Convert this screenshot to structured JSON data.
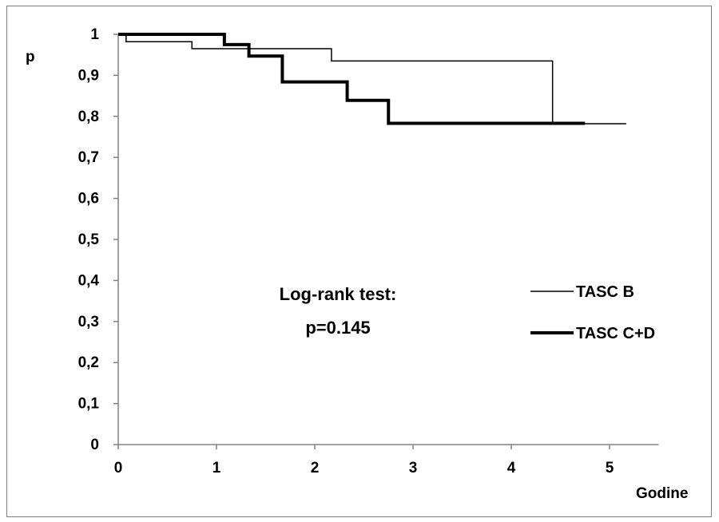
{
  "chart_data": {
    "type": "line",
    "step": true,
    "ylabel": "p",
    "xlabel": "Godine",
    "xlim": [
      0,
      5.5
    ],
    "ylim": [
      0,
      1
    ],
    "x_ticks": [
      "0",
      "1",
      "2",
      "3",
      "4",
      "5"
    ],
    "y_ticks": [
      "0",
      "0,1",
      "0,2",
      "0,3",
      "0,4",
      "0,5",
      "0,6",
      "0,7",
      "0,8",
      "0,9",
      "1"
    ],
    "grid": false,
    "legend_position": "right",
    "annotation": [
      "Log-rank test:",
      "p=0.145"
    ],
    "series": [
      {
        "name": "TASC B",
        "color": "#000000",
        "points": [
          [
            0,
            1.0
          ],
          [
            0.08,
            1.0
          ],
          [
            0.08,
            0.982
          ],
          [
            0.75,
            0.982
          ],
          [
            0.75,
            0.965
          ],
          [
            2.17,
            0.965
          ],
          [
            2.17,
            0.935
          ],
          [
            4.42,
            0.935
          ],
          [
            4.42,
            0.782
          ],
          [
            5.17,
            0.782
          ]
        ]
      },
      {
        "name": "TASC C+D",
        "color": "#000000",
        "points": [
          [
            0,
            1.0
          ],
          [
            1.08,
            1.0
          ],
          [
            1.08,
            0.975
          ],
          [
            1.33,
            0.975
          ],
          [
            1.33,
            0.947
          ],
          [
            1.67,
            0.947
          ],
          [
            1.67,
            0.884
          ],
          [
            2.33,
            0.884
          ],
          [
            2.33,
            0.839
          ],
          [
            2.75,
            0.839
          ],
          [
            2.75,
            0.783
          ],
          [
            4.75,
            0.783
          ]
        ]
      }
    ]
  }
}
